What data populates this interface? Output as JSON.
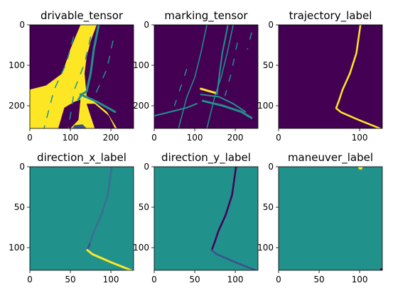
{
  "chart_data": [
    {
      "type": "heatmap",
      "title": "drivable_tensor",
      "xlim": [
        0,
        256
      ],
      "ylim": [
        256,
        0
      ],
      "xticks": [
        0,
        100,
        200
      ],
      "yticks": [
        0,
        100,
        200
      ],
      "xtick_labels": [
        "0",
        "100",
        "200"
      ],
      "ytick_labels": [
        "0",
        "100",
        "200"
      ],
      "colormap": "viridis",
      "background": "#440154",
      "layers": [
        {
          "kind": "area",
          "color": "#fde725",
          "poly": [
            [
              0,
              256
            ],
            [
              0,
              160
            ],
            [
              40,
              150
            ],
            [
              80,
              120
            ],
            [
              100,
              60
            ],
            [
              125,
              0
            ],
            [
              165,
              0
            ],
            [
              150,
              40
            ],
            [
              140,
              80
            ],
            [
              135,
              120
            ],
            [
              140,
              175
            ],
            [
              190,
              215
            ],
            [
              215,
              256
            ]
          ]
        },
        {
          "kind": "area",
          "color": "#440154",
          "poly": [
            [
              70,
              256
            ],
            [
              85,
              205
            ],
            [
              110,
              190
            ],
            [
              125,
              185
            ],
            [
              120,
              235
            ],
            [
              100,
              256
            ]
          ]
        },
        {
          "kind": "area",
          "color": "#440154",
          "poly": [
            [
              160,
              256
            ],
            [
              140,
              195
            ],
            [
              160,
              195
            ],
            [
              195,
              225
            ],
            [
              210,
              256
            ]
          ]
        },
        {
          "kind": "line",
          "color": "#21918c",
          "width": 3,
          "points": [
            [
              170,
              0
            ],
            [
              158,
              60
            ],
            [
              150,
              120
            ],
            [
              140,
              165
            ],
            [
              128,
              172
            ],
            [
              120,
              185
            ]
          ]
        },
        {
          "kind": "line",
          "color": "#21918c",
          "width": 3,
          "points": [
            [
              125,
              172
            ],
            [
              165,
              190
            ],
            [
              210,
              215
            ]
          ]
        },
        {
          "kind": "line",
          "color": "#21918c",
          "width": 1.5,
          "dash": "10 12",
          "points": [
            [
              108,
              30
            ],
            [
              90,
              95
            ],
            [
              60,
              160
            ],
            [
              35,
              256
            ]
          ]
        },
        {
          "kind": "line",
          "color": "#21918c",
          "width": 1.5,
          "dash": "10 12",
          "points": [
            [
              150,
              30
            ],
            [
              135,
              95
            ],
            [
              110,
              160
            ],
            [
              95,
              256
            ]
          ]
        },
        {
          "kind": "line",
          "color": "#21918c",
          "width": 1.5,
          "dash": "10 12",
          "points": [
            [
              205,
              40
            ],
            [
              190,
              110
            ],
            [
              160,
              175
            ]
          ]
        },
        {
          "kind": "area",
          "color": "#3b528b",
          "poly": [
            [
              105,
              256
            ],
            [
              110,
              248
            ],
            [
              130,
              246
            ],
            [
              140,
              256
            ]
          ]
        }
      ]
    },
    {
      "type": "heatmap",
      "title": "marking_tensor",
      "xlim": [
        0,
        256
      ],
      "ylim": [
        256,
        0
      ],
      "xticks": [
        0,
        100,
        200
      ],
      "yticks": [
        0,
        100,
        200
      ],
      "xtick_labels": [
        "0",
        "100",
        "200"
      ],
      "ytick_labels": [
        "0",
        "100",
        "200"
      ],
      "colormap": "viridis",
      "background": "#440154",
      "layers": [
        {
          "kind": "line",
          "color": "#21918c",
          "width": 1.5,
          "points": [
            [
              130,
              0
            ],
            [
              115,
              70
            ],
            [
              100,
              130
            ],
            [
              80,
              180
            ],
            [
              60,
              256
            ]
          ]
        },
        {
          "kind": "line",
          "color": "#21918c",
          "width": 1.5,
          "points": [
            [
              195,
              0
            ],
            [
              180,
              70
            ],
            [
              165,
              130
            ],
            [
              150,
              175
            ],
            [
              130,
              256
            ]
          ]
        },
        {
          "kind": "line",
          "color": "#21918c",
          "width": 2,
          "points": [
            [
              182,
              0
            ],
            [
              168,
              70
            ],
            [
              160,
              130
            ],
            [
              155,
              172
            ]
          ]
        },
        {
          "kind": "line",
          "color": "#21918c",
          "width": 1.5,
          "dash": "9 14",
          "points": [
            [
              80,
              110
            ],
            [
              60,
              170
            ],
            [
              50,
              200
            ]
          ]
        },
        {
          "kind": "line",
          "color": "#21918c",
          "width": 1.5,
          "dash": "9 14",
          "points": [
            [
              205,
              45
            ],
            [
              190,
              120
            ],
            [
              175,
              175
            ]
          ]
        },
        {
          "kind": "line",
          "color": "#21918c",
          "width": 1.5,
          "dash": "9 14",
          "points": [
            [
              240,
              20
            ],
            [
              230,
              60
            ]
          ]
        },
        {
          "kind": "line",
          "color": "#fde725",
          "width": 3,
          "points": [
            [
              115,
              158
            ],
            [
              150,
              168
            ]
          ]
        },
        {
          "kind": "line",
          "color": "#21918c",
          "width": 2,
          "points": [
            [
              0,
              225
            ],
            [
              40,
              215
            ],
            [
              80,
              205
            ],
            [
              105,
              195
            ]
          ]
        },
        {
          "kind": "line",
          "color": "#21918c",
          "width": 3,
          "points": [
            [
              120,
              188
            ],
            [
              170,
              200
            ],
            [
              215,
              215
            ],
            [
              240,
              230
            ]
          ]
        },
        {
          "kind": "line",
          "color": "#21918c",
          "width": 2,
          "points": [
            [
              115,
              172
            ],
            [
              160,
              178
            ],
            [
              195,
              195
            ],
            [
              225,
              215
            ]
          ]
        }
      ]
    },
    {
      "type": "heatmap",
      "title": "trajectory_label",
      "xlim": [
        0,
        128
      ],
      "ylim": [
        128,
        0
      ],
      "xticks": [
        0,
        100
      ],
      "yticks": [
        0,
        50,
        100
      ],
      "xtick_labels": [
        "0",
        "100"
      ],
      "ytick_labels": [
        "0",
        "50",
        "100"
      ],
      "colormap": "viridis",
      "background": "#440154",
      "layers": [
        {
          "kind": "line",
          "color": "#fde725",
          "width": 2.5,
          "points": [
            [
              101,
              0
            ],
            [
              96,
              35
            ],
            [
              88,
              60
            ],
            [
              79,
              80
            ],
            [
              74,
              95
            ],
            [
              71,
              103
            ],
            [
              77,
              108
            ],
            [
              100,
              118
            ],
            [
              125,
              128
            ]
          ]
        }
      ]
    },
    {
      "type": "heatmap",
      "title": "direction_x_label",
      "xlim": [
        0,
        128
      ],
      "ylim": [
        128,
        0
      ],
      "xticks": [
        0,
        50,
        100
      ],
      "yticks": [
        0,
        50,
        100
      ],
      "xtick_labels": [
        "0",
        "50",
        "100"
      ],
      "ytick_labels": [
        "0",
        "50",
        "100"
      ],
      "colormap": "viridis",
      "background": "#21918c",
      "layers": [
        {
          "kind": "line",
          "color": "#3b6f8e",
          "width": 2.5,
          "points": [
            [
              101,
              0
            ],
            [
              96,
              35
            ],
            [
              88,
              60
            ],
            [
              79,
              80
            ],
            [
              74,
              95
            ]
          ]
        },
        {
          "kind": "line",
          "color": "#3b528b",
          "width": 2.5,
          "points": [
            [
              74,
              95
            ],
            [
              71,
              103
            ]
          ]
        },
        {
          "kind": "line",
          "color": "#fde725",
          "width": 3,
          "points": [
            [
              71,
              103
            ],
            [
              77,
              108
            ],
            [
              100,
              118
            ],
            [
              125,
              128
            ]
          ]
        }
      ]
    },
    {
      "type": "heatmap",
      "title": "direction_y_label",
      "xlim": [
        0,
        128
      ],
      "ylim": [
        128,
        0
      ],
      "xticks": [
        0,
        50,
        100
      ],
      "yticks": [
        0,
        50,
        100
      ],
      "xtick_labels": [
        "0",
        "50",
        "100"
      ],
      "ytick_labels": [
        "0",
        "50",
        "100"
      ],
      "colormap": "viridis",
      "background": "#21918c",
      "layers": [
        {
          "kind": "line",
          "color": "#440154",
          "width": 2.5,
          "points": [
            [
              101,
              0
            ],
            [
              96,
              35
            ],
            [
              88,
              60
            ],
            [
              79,
              80
            ],
            [
              74,
              95
            ],
            [
              71,
              103
            ]
          ]
        },
        {
          "kind": "line",
          "color": "#3b528b",
          "width": 2.5,
          "points": [
            [
              71,
              103
            ],
            [
              77,
              108
            ],
            [
              100,
              118
            ],
            [
              125,
              128
            ]
          ]
        }
      ]
    },
    {
      "type": "heatmap",
      "title": "maneuver_label",
      "xlim": [
        0,
        128
      ],
      "ylim": [
        128,
        0
      ],
      "xticks": [
        0,
        50,
        100
      ],
      "yticks": [
        0,
        50,
        100
      ],
      "xtick_labels": [
        "0",
        "50",
        "100"
      ],
      "ytick_labels": [
        "0",
        "50",
        "100"
      ],
      "colormap": "viridis",
      "background": "#21918c",
      "layers": [
        {
          "kind": "dot",
          "color": "#fde725",
          "cx": 101,
          "cy": 1,
          "r": 3
        },
        {
          "kind": "dot",
          "color": "#440154",
          "cx": 127,
          "cy": 127,
          "r": 2
        }
      ]
    }
  ]
}
